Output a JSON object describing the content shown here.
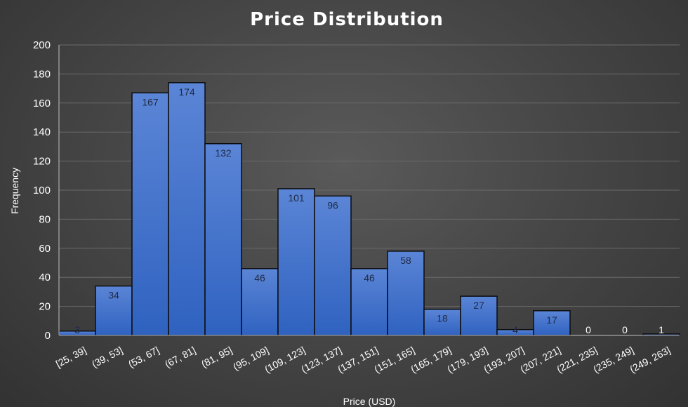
{
  "chart_data": {
    "type": "bar",
    "title": "Price Distribution",
    "xlabel": "Price (USD)",
    "ylabel": "Frequency",
    "categories": [
      "[25, 39]",
      "(39, 53]",
      "(53, 67]",
      "(67, 81]",
      "(81, 95]",
      "(95, 109]",
      "(109, 123]",
      "(123, 137]",
      "(137, 151]",
      "(151, 165]",
      "(165, 179]",
      "(179, 193]",
      "(193, 207]",
      "(207, 221]",
      "(221, 235]",
      "(235, 249]",
      "(249, 263]"
    ],
    "values": [
      3,
      34,
      167,
      174,
      132,
      46,
      101,
      96,
      46,
      58,
      18,
      27,
      4,
      17,
      0,
      0,
      1
    ],
    "ylim": [
      0,
      200
    ],
    "yticks": [
      0,
      20,
      40,
      60,
      80,
      100,
      120,
      140,
      160,
      180,
      200
    ],
    "grid": true,
    "legend": "none",
    "colors": {
      "bar_top": "#5b85d6",
      "bar_bottom": "#2f62c0",
      "bar_outline": "#0d0d0d",
      "label_inside": "#1f2a44",
      "label_zero": "#ffffff"
    }
  }
}
